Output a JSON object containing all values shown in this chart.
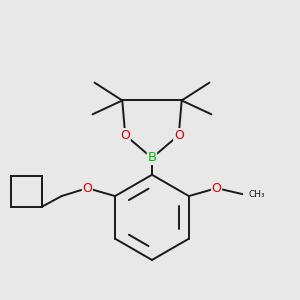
{
  "background_color": "#e8e8e8",
  "bond_color": "#1a1a1a",
  "bond_width": 1.4,
  "atom_colors": {
    "B": "#00bb00",
    "O": "#dd0000",
    "C": "#1a1a1a"
  },
  "figsize": [
    3.0,
    3.0
  ],
  "dpi": 100
}
